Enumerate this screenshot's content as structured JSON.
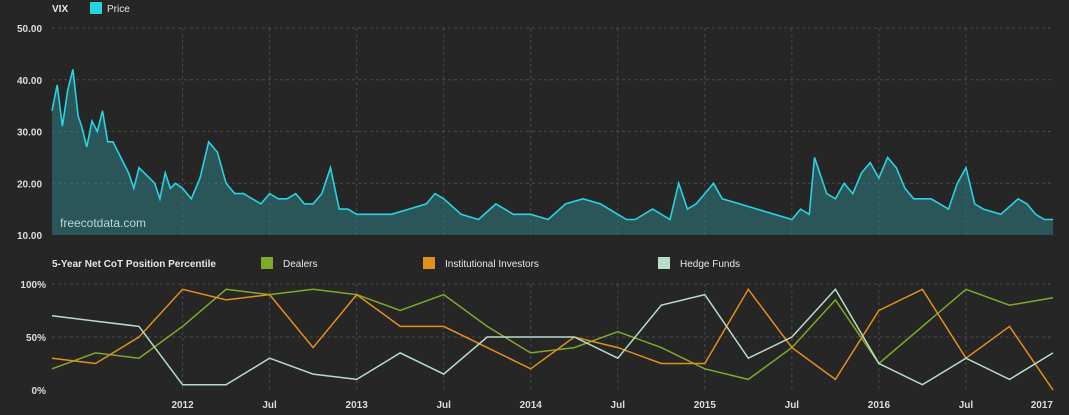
{
  "chart_data": [
    {
      "type": "area",
      "title": "VIX",
      "legend": [
        {
          "name": "Price",
          "color": "#29d3e0"
        }
      ],
      "watermark": "freecotdata.com",
      "ylim": [
        10,
        50
      ],
      "yticks": [
        "50.00",
        "40.00",
        "30.00",
        "20.00",
        "10.00"
      ],
      "grid": true,
      "xlim": [
        2011.25,
        2017.0
      ],
      "x": [
        2011.25,
        2011.28,
        2011.31,
        2011.34,
        2011.37,
        2011.4,
        2011.42,
        2011.45,
        2011.48,
        2011.51,
        2011.54,
        2011.57,
        2011.6,
        2011.63,
        2011.66,
        2011.69,
        2011.72,
        2011.75,
        2011.78,
        2011.81,
        2011.84,
        2011.87,
        2011.9,
        2011.93,
        2011.96,
        2012.0,
        2012.05,
        2012.1,
        2012.15,
        2012.2,
        2012.25,
        2012.3,
        2012.35,
        2012.4,
        2012.45,
        2012.5,
        2012.55,
        2012.6,
        2012.65,
        2012.7,
        2012.75,
        2012.8,
        2012.85,
        2012.9,
        2012.95,
        2013.0,
        2013.1,
        2013.2,
        2013.3,
        2013.4,
        2013.45,
        2013.5,
        2013.6,
        2013.7,
        2013.8,
        2013.9,
        2014.0,
        2014.1,
        2014.2,
        2014.3,
        2014.4,
        2014.5,
        2014.55,
        2014.6,
        2014.7,
        2014.8,
        2014.85,
        2014.9,
        2014.95,
        2015.0,
        2015.05,
        2015.1,
        2015.2,
        2015.3,
        2015.4,
        2015.5,
        2015.55,
        2015.6,
        2015.63,
        2015.66,
        2015.7,
        2015.75,
        2015.8,
        2015.85,
        2015.9,
        2015.95,
        2016.0,
        2016.05,
        2016.1,
        2016.15,
        2016.2,
        2016.3,
        2016.4,
        2016.45,
        2016.5,
        2016.55,
        2016.6,
        2016.7,
        2016.8,
        2016.85,
        2016.9,
        2016.95,
        2017.0
      ],
      "values": [
        34,
        39,
        31,
        38,
        42,
        33,
        31,
        27,
        32,
        30,
        34,
        28,
        28,
        26,
        24,
        22,
        19,
        23,
        22,
        21,
        20,
        17,
        22,
        19,
        20,
        19,
        17,
        21,
        28,
        26,
        20,
        18,
        18,
        17,
        16,
        18,
        17,
        17,
        18,
        16,
        16,
        18,
        23,
        15,
        15,
        14,
        14,
        14,
        15,
        16,
        18,
        17,
        14,
        13,
        16,
        14,
        14,
        13,
        16,
        17,
        16,
        14,
        13,
        13,
        15,
        13,
        20,
        15,
        16,
        18,
        20,
        17,
        16,
        15,
        14,
        13,
        15,
        14,
        25,
        22,
        18,
        17,
        20,
        18,
        22,
        24,
        21,
        25,
        23,
        19,
        17,
        17,
        15,
        20,
        23,
        16,
        15,
        14,
        17,
        16,
        14,
        13,
        13
      ]
    },
    {
      "type": "line",
      "title": "5-Year Net CoT Position Percentile",
      "ylim": [
        0,
        100
      ],
      "yticks": [
        "100%",
        "50%",
        "0%"
      ],
      "grid": true,
      "xlim": [
        2011.25,
        2017.0
      ],
      "xticks": [
        {
          "x": 2012.0,
          "label": "2012",
          "major": true
        },
        {
          "x": 2012.5,
          "label": "Jul",
          "major": false
        },
        {
          "x": 2013.0,
          "label": "2013",
          "major": true
        },
        {
          "x": 2013.5,
          "label": "Jul",
          "major": false
        },
        {
          "x": 2014.0,
          "label": "2014",
          "major": true
        },
        {
          "x": 2014.5,
          "label": "Jul",
          "major": false
        },
        {
          "x": 2015.0,
          "label": "2015",
          "major": true
        },
        {
          "x": 2015.5,
          "label": "Jul",
          "major": false
        },
        {
          "x": 2016.0,
          "label": "2016",
          "major": true
        },
        {
          "x": 2016.5,
          "label": "Jul",
          "major": false
        },
        {
          "x": 2017.0,
          "label": "2017",
          "major": true
        }
      ],
      "x": [
        2011.25,
        2011.5,
        2011.75,
        2012.0,
        2012.25,
        2012.5,
        2012.75,
        2013.0,
        2013.25,
        2013.5,
        2013.75,
        2014.0,
        2014.25,
        2014.5,
        2014.75,
        2015.0,
        2015.25,
        2015.5,
        2015.75,
        2016.0,
        2016.25,
        2016.5,
        2016.75,
        2017.0
      ],
      "series": [
        {
          "name": "Dealers",
          "color": "#7eaa2a",
          "values": [
            20,
            35,
            30,
            60,
            95,
            90,
            95,
            90,
            75,
            90,
            60,
            35,
            40,
            55,
            40,
            20,
            10,
            40,
            85,
            25,
            60,
            95,
            80,
            87
          ]
        },
        {
          "name": "Institutional Investors",
          "color": "#e1901c",
          "values": [
            30,
            25,
            50,
            95,
            85,
            90,
            40,
            90,
            60,
            60,
            40,
            20,
            50,
            40,
            25,
            25,
            95,
            40,
            10,
            75,
            95,
            30,
            60,
            0
          ]
        },
        {
          "name": "Hedge Funds",
          "color": "#b7dcc9",
          "values": [
            70,
            65,
            60,
            5,
            5,
            30,
            15,
            10,
            35,
            15,
            50,
            50,
            50,
            30,
            80,
            90,
            30,
            50,
            95,
            25,
            5,
            30,
            10,
            35
          ]
        }
      ]
    }
  ]
}
